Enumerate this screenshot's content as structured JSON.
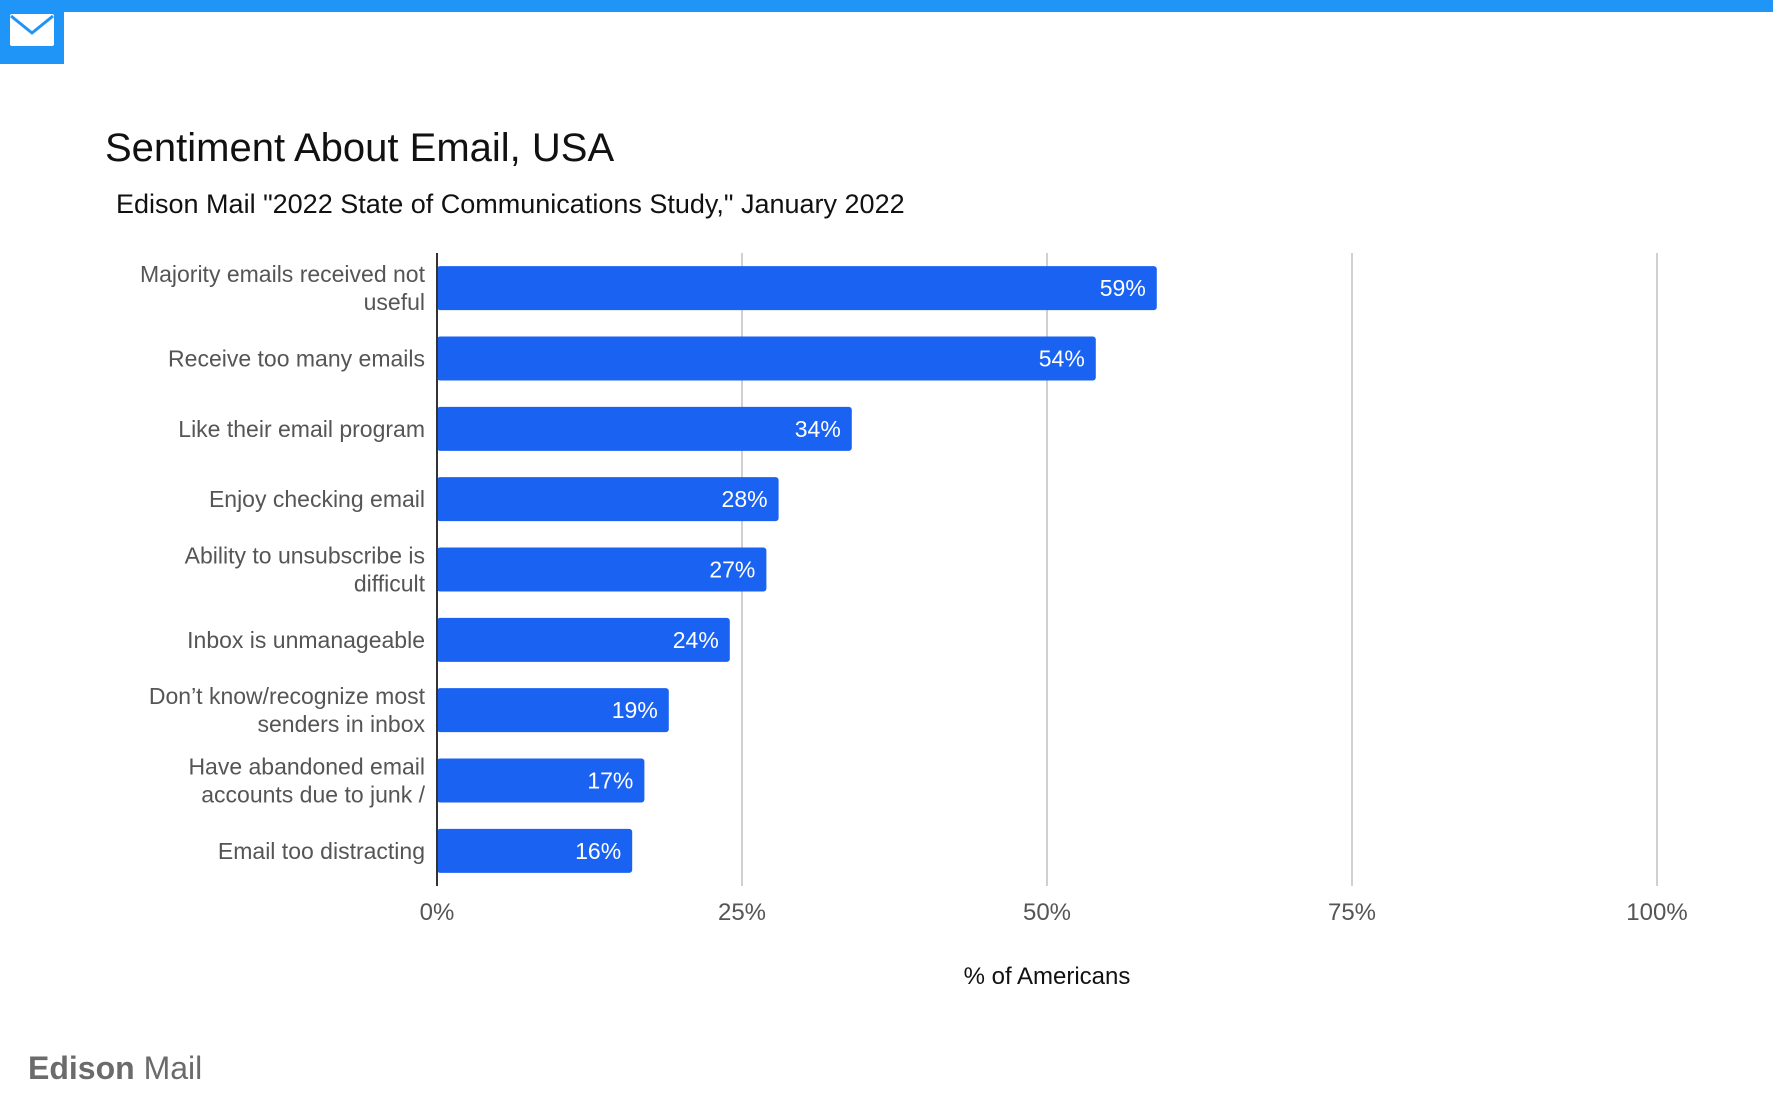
{
  "header": {
    "logo_icon": "mail-envelope-icon",
    "accent": "#1e95f7"
  },
  "chart_data": {
    "type": "bar",
    "orientation": "horizontal",
    "title": "Sentiment About Email, USA",
    "subtitle": "Edison Mail \"2022 State of Communications Study,\" January 2022",
    "categories": [
      [
        "Majority emails received not",
        "useful"
      ],
      [
        "Receive too many emails"
      ],
      [
        "Like their email program"
      ],
      [
        "Enjoy checking email"
      ],
      [
        "Ability to unsubscribe is",
        "difficult"
      ],
      [
        "Inbox is unmanageable"
      ],
      [
        "Don’t know/recognize most",
        "senders in inbox"
      ],
      [
        "Have abandoned email",
        "accounts due to junk /"
      ],
      [
        "Email too distracting"
      ]
    ],
    "values": [
      59,
      54,
      34,
      28,
      27,
      24,
      19,
      17,
      16
    ],
    "data_labels": [
      "59%",
      "54%",
      "34%",
      "28%",
      "27%",
      "24%",
      "19%",
      "17%",
      "16%"
    ],
    "xlabel": "% of Americans",
    "ylabel": "",
    "xlim": [
      0,
      100
    ],
    "xticks": [
      0,
      25,
      50,
      75,
      100
    ],
    "xtick_labels": [
      "0%",
      "25%",
      "50%",
      "75%",
      "100%"
    ],
    "grid": true,
    "legend": "none",
    "bar_color": "#1a62f2"
  },
  "footer": {
    "brand_bold": "Edison",
    "brand_light": " Mail"
  }
}
